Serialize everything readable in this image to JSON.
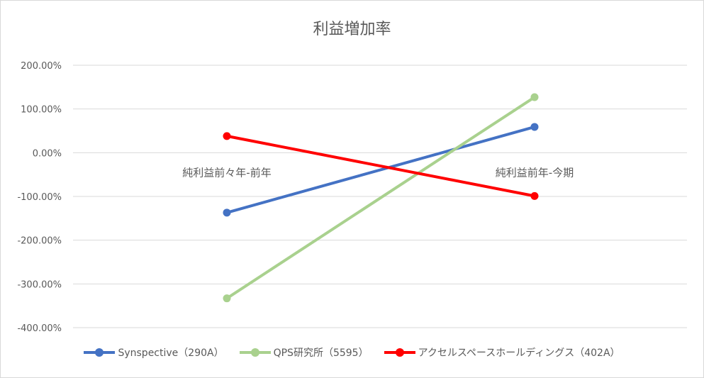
{
  "chart_data": {
    "type": "line",
    "title": "利益増加率",
    "categories": [
      "純利益前々年-前年",
      "純利益前年-今期"
    ],
    "ylim": [
      -400,
      200
    ],
    "yticks": [
      200,
      100,
      0,
      -100,
      -200,
      -300,
      -400
    ],
    "ytick_labels": [
      "200.00%",
      "100.00%",
      "0.00%",
      "-100.00%",
      "-200.00%",
      "-300.00%",
      "-400.00%"
    ],
    "grid": true,
    "legend_position": "bottom",
    "series": [
      {
        "name": "Synspective（290A）",
        "color": "#4472c4",
        "values": [
          -137,
          59
        ]
      },
      {
        "name": "QPS研究所（5595）",
        "color": "#a9d18e",
        "values": [
          -333,
          127
        ]
      },
      {
        "name": "アクセルスペースホールディングス（402A）",
        "color": "#ff0000",
        "values": [
          38,
          -99
        ]
      }
    ]
  }
}
